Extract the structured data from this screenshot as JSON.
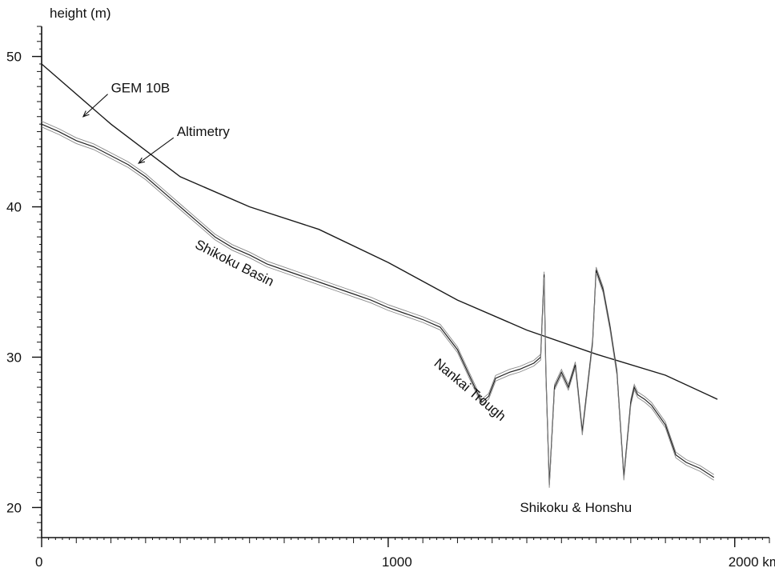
{
  "chart_data": {
    "type": "line",
    "title": "",
    "xlabel": "",
    "ylabel": "height (m)",
    "x_unit": "km",
    "xlim": [
      0,
      2100
    ],
    "ylim": [
      18,
      52
    ],
    "x_ticks": [
      {
        "value": 0,
        "label": "0"
      },
      {
        "value": 1000,
        "label": "1000"
      },
      {
        "value": 2000,
        "label": "2000 km"
      }
    ],
    "y_ticks": [
      {
        "value": 20,
        "label": "20"
      },
      {
        "value": 30,
        "label": "30"
      },
      {
        "value": 40,
        "label": "40"
      },
      {
        "value": 50,
        "label": "50"
      }
    ],
    "grid": false,
    "series": [
      {
        "name": "GEM 10B",
        "color": "#1a1a1a",
        "x": [
          0,
          200,
          400,
          600,
          800,
          1000,
          1200,
          1400,
          1600,
          1800,
          1950
        ],
        "y": [
          49.5,
          45.5,
          42.0,
          40.0,
          38.5,
          36.3,
          33.8,
          31.8,
          30.2,
          28.8,
          27.2
        ]
      },
      {
        "name": "Altimetry",
        "color": "#333333",
        "x": [
          0,
          50,
          100,
          150,
          200,
          250,
          300,
          350,
          400,
          450,
          500,
          550,
          600,
          650,
          700,
          750,
          800,
          850,
          900,
          950,
          1000,
          1050,
          1100,
          1150,
          1200,
          1240,
          1270,
          1290,
          1310,
          1350,
          1380,
          1420,
          1440,
          1450,
          1455,
          1465,
          1480,
          1500,
          1520,
          1540,
          1560,
          1580,
          1590,
          1600,
          1620,
          1640,
          1660,
          1680,
          1700,
          1710,
          1720,
          1740,
          1760,
          1800,
          1830,
          1860,
          1900,
          1940
        ],
        "y": [
          45.5,
          45.0,
          44.4,
          44.0,
          43.4,
          42.8,
          42.0,
          41.0,
          40.0,
          39.0,
          38.0,
          37.3,
          36.8,
          36.2,
          35.8,
          35.4,
          35.0,
          34.6,
          34.2,
          33.8,
          33.3,
          32.9,
          32.5,
          32.0,
          30.5,
          28.5,
          27.0,
          27.4,
          28.6,
          29.0,
          29.2,
          29.6,
          30.0,
          35.5,
          29.0,
          21.5,
          28.0,
          29.0,
          28.0,
          29.5,
          25.0,
          29.0,
          31.0,
          35.8,
          34.5,
          32.0,
          29.0,
          22.0,
          27.0,
          28.0,
          27.5,
          27.2,
          26.8,
          25.5,
          23.5,
          23.0,
          22.6,
          22.0
        ]
      }
    ],
    "annotations": [
      {
        "text": "GEM 10B",
        "x": 200,
        "y": 47.6,
        "arrow_to": [
          120,
          46.0
        ]
      },
      {
        "text": "Altimetry",
        "x": 390,
        "y": 44.7,
        "arrow_to": [
          280,
          42.9
        ]
      },
      {
        "text": "Shikoku  Basin",
        "x": 440,
        "y": 37.3,
        "angle": 27
      },
      {
        "text": "Nankai Trough",
        "x": 1130,
        "y": 29.5,
        "angle": 40
      },
      {
        "text": "Shikoku & Honshu",
        "x": 1380,
        "y": 19.7,
        "angle": 0
      }
    ]
  }
}
